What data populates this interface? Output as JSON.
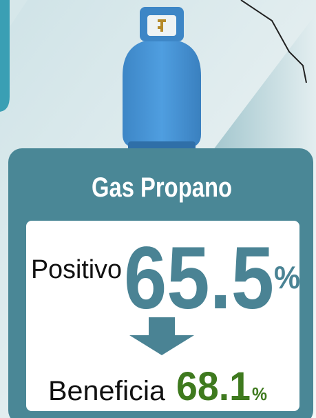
{
  "title": "Gas Propano",
  "positive": {
    "label": "Positivo",
    "value": 65.5,
    "unit": "%"
  },
  "benefit": {
    "label": "Beneficia",
    "value": 68.1,
    "unit": "%"
  }
}
